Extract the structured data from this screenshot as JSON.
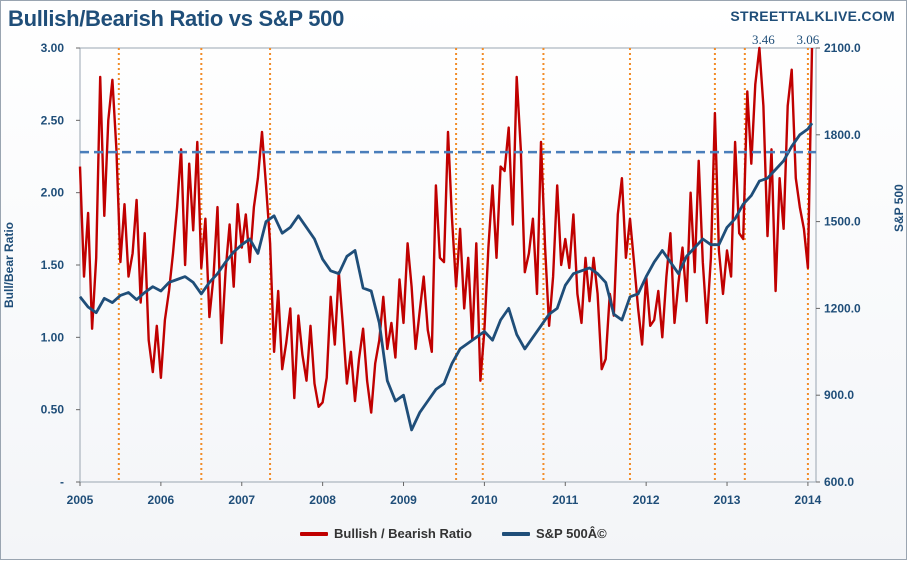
{
  "header": {
    "title": "Bullish/Bearish Ratio vs S&P 500",
    "watermark": "STREETTALKLIVE.COM"
  },
  "chart_data": {
    "type": "line",
    "title": "Bullish/Bearish Ratio vs S&P 500",
    "ylabel": "Bull/Bear Ratio",
    "y2label": "S&P 500",
    "ylim": [
      0,
      3
    ],
    "y2lim": [
      600,
      2100
    ],
    "xlim": [
      2005,
      2014.1
    ],
    "x_tick_labels": [
      "2005",
      "2006",
      "2007",
      "2008",
      "2009",
      "2010",
      "2011",
      "2012",
      "2013",
      "2014"
    ],
    "y_tick_labels": [
      "-",
      "0.50",
      "1.00",
      "1.50",
      "2.00",
      "2.50",
      "3.00"
    ],
    "y2_tick_labels": [
      "600.0",
      "900.0",
      "1200.0",
      "1500.0",
      "1800.0",
      "2100.0"
    ],
    "grid": false,
    "legend_position": "bottom",
    "threshold_line": {
      "value": 2.28,
      "style": "dashed"
    },
    "annotations": [
      {
        "text": "3.46",
        "x": 2013.45,
        "y": 3.46
      },
      {
        "text": "3.06",
        "x": 2014.0,
        "y": 3.06
      }
    ],
    "signal_dates": [
      2005.48,
      2006.5,
      2007.35,
      2009.65,
      2009.98,
      2010.73,
      2011.8,
      2012.85,
      2013.22,
      2014.0
    ],
    "series": [
      {
        "name": "Bullish / Bearish Ratio",
        "color": "#c00000",
        "axis": "left",
        "x": [
          2005.0,
          2005.05,
          2005.1,
          2005.15,
          2005.2,
          2005.25,
          2005.3,
          2005.35,
          2005.4,
          2005.45,
          2005.5,
          2005.55,
          2005.6,
          2005.65,
          2005.7,
          2005.75,
          2005.8,
          2005.85,
          2005.9,
          2005.95,
          2006.0,
          2006.05,
          2006.1,
          2006.15,
          2006.2,
          2006.25,
          2006.3,
          2006.35,
          2006.4,
          2006.45,
          2006.5,
          2006.55,
          2006.6,
          2006.65,
          2006.7,
          2006.75,
          2006.8,
          2006.85,
          2006.9,
          2006.95,
          2007.0,
          2007.05,
          2007.1,
          2007.15,
          2007.2,
          2007.25,
          2007.3,
          2007.35,
          2007.4,
          2007.45,
          2007.5,
          2007.55,
          2007.6,
          2007.65,
          2007.7,
          2007.75,
          2007.8,
          2007.85,
          2007.9,
          2007.95,
          2008.0,
          2008.05,
          2008.1,
          2008.15,
          2008.2,
          2008.25,
          2008.3,
          2008.35,
          2008.4,
          2008.45,
          2008.5,
          2008.55,
          2008.6,
          2008.65,
          2008.7,
          2008.75,
          2008.8,
          2008.85,
          2008.9,
          2008.95,
          2009.0,
          2009.05,
          2009.1,
          2009.15,
          2009.2,
          2009.25,
          2009.3,
          2009.35,
          2009.4,
          2009.45,
          2009.5,
          2009.55,
          2009.6,
          2009.65,
          2009.7,
          2009.75,
          2009.8,
          2009.85,
          2009.9,
          2009.95,
          2010.0,
          2010.05,
          2010.1,
          2010.15,
          2010.2,
          2010.25,
          2010.3,
          2010.35,
          2010.4,
          2010.45,
          2010.5,
          2010.55,
          2010.6,
          2010.65,
          2010.7,
          2010.75,
          2010.8,
          2010.85,
          2010.9,
          2010.95,
          2011.0,
          2011.05,
          2011.1,
          2011.15,
          2011.2,
          2011.25,
          2011.3,
          2011.35,
          2011.4,
          2011.45,
          2011.5,
          2011.55,
          2011.6,
          2011.65,
          2011.7,
          2011.75,
          2011.8,
          2011.85,
          2011.9,
          2011.95,
          2012.0,
          2012.05,
          2012.1,
          2012.15,
          2012.2,
          2012.25,
          2012.3,
          2012.35,
          2012.4,
          2012.45,
          2012.5,
          2012.55,
          2012.6,
          2012.65,
          2012.7,
          2012.75,
          2012.8,
          2012.85,
          2012.9,
          2012.95,
          2013.0,
          2013.05,
          2013.1,
          2013.15,
          2013.2,
          2013.25,
          2013.3,
          2013.35,
          2013.4,
          2013.45,
          2013.5,
          2013.55,
          2013.6,
          2013.65,
          2013.7,
          2013.75,
          2013.8,
          2013.85,
          2013.9,
          2013.95,
          2014.0,
          2014.05
        ],
        "values": [
          2.18,
          1.42,
          1.86,
          1.06,
          1.55,
          2.8,
          1.84,
          2.5,
          2.78,
          2.3,
          1.52,
          1.92,
          1.42,
          1.58,
          1.95,
          1.24,
          1.72,
          0.98,
          0.76,
          1.08,
          0.72,
          1.12,
          1.32,
          1.58,
          1.9,
          2.3,
          1.5,
          2.2,
          1.74,
          2.35,
          1.48,
          1.82,
          1.14,
          1.42,
          1.9,
          0.96,
          1.46,
          1.78,
          1.35,
          1.92,
          1.62,
          1.85,
          1.52,
          1.9,
          2.1,
          2.42,
          2.05,
          1.65,
          0.9,
          1.32,
          0.78,
          0.96,
          1.2,
          0.58,
          1.15,
          0.88,
          0.7,
          1.08,
          0.68,
          0.52,
          0.55,
          0.72,
          1.28,
          0.95,
          1.45,
          1.08,
          0.68,
          0.9,
          0.56,
          0.85,
          1.06,
          0.7,
          0.48,
          0.82,
          0.98,
          1.28,
          0.92,
          1.1,
          0.86,
          1.4,
          1.1,
          1.65,
          1.35,
          0.92,
          1.18,
          1.42,
          1.05,
          0.9,
          2.05,
          1.55,
          1.52,
          2.42,
          1.82,
          1.35,
          1.75,
          1.2,
          1.55,
          0.98,
          1.65,
          0.7,
          1.05,
          1.62,
          2.05,
          1.55,
          2.18,
          2.15,
          2.45,
          1.78,
          2.8,
          2.3,
          1.45,
          1.58,
          1.82,
          1.3,
          2.35,
          1.62,
          1.08,
          1.42,
          2.05,
          1.5,
          1.68,
          1.48,
          1.85,
          1.3,
          1.1,
          1.55,
          1.25,
          1.55,
          1.3,
          0.78,
          0.85,
          1.3,
          1.15,
          1.85,
          2.1,
          1.55,
          1.82,
          1.52,
          1.2,
          0.95,
          1.42,
          1.08,
          1.12,
          1.32,
          1.0,
          1.42,
          1.72,
          1.1,
          1.38,
          1.62,
          1.25,
          2.0,
          1.45,
          2.22,
          1.52,
          1.1,
          1.55,
          2.55,
          1.6,
          1.3,
          1.6,
          1.42,
          2.35,
          1.72,
          1.68,
          2.7,
          2.2,
          2.75,
          3.46,
          2.6,
          1.7,
          2.3,
          1.32,
          2.1,
          1.75,
          2.6,
          2.85,
          2.1,
          1.9,
          1.75,
          1.48,
          3.06
        ]
      },
      {
        "name": "S&P 500Â©",
        "color": "#1f4e79",
        "axis": "right",
        "x": [
          2005.0,
          2005.1,
          2005.2,
          2005.3,
          2005.4,
          2005.5,
          2005.6,
          2005.7,
          2005.8,
          2005.9,
          2006.0,
          2006.1,
          2006.2,
          2006.3,
          2006.4,
          2006.5,
          2006.6,
          2006.7,
          2006.8,
          2006.9,
          2007.0,
          2007.1,
          2007.2,
          2007.3,
          2007.4,
          2007.5,
          2007.6,
          2007.7,
          2007.8,
          2007.9,
          2008.0,
          2008.1,
          2008.2,
          2008.3,
          2008.4,
          2008.5,
          2008.6,
          2008.7,
          2008.8,
          2008.9,
          2009.0,
          2009.1,
          2009.2,
          2009.3,
          2009.4,
          2009.5,
          2009.6,
          2009.7,
          2009.8,
          2009.9,
          2010.0,
          2010.1,
          2010.2,
          2010.3,
          2010.4,
          2010.5,
          2010.6,
          2010.7,
          2010.8,
          2010.9,
          2011.0,
          2011.1,
          2011.2,
          2011.3,
          2011.4,
          2011.5,
          2011.6,
          2011.7,
          2011.8,
          2011.9,
          2012.0,
          2012.1,
          2012.2,
          2012.3,
          2012.4,
          2012.5,
          2012.6,
          2012.7,
          2012.8,
          2012.9,
          2013.0,
          2013.1,
          2013.2,
          2013.3,
          2013.4,
          2013.5,
          2013.6,
          2013.7,
          2013.8,
          2013.9,
          2014.0,
          2014.05
        ],
        "values": [
          1240,
          1205,
          1185,
          1235,
          1220,
          1245,
          1255,
          1230,
          1255,
          1275,
          1260,
          1290,
          1300,
          1310,
          1290,
          1250,
          1290,
          1320,
          1360,
          1395,
          1420,
          1440,
          1390,
          1500,
          1520,
          1460,
          1480,
          1520,
          1480,
          1440,
          1370,
          1330,
          1320,
          1380,
          1400,
          1270,
          1260,
          1150,
          950,
          880,
          900,
          780,
          840,
          880,
          920,
          940,
          1010,
          1060,
          1080,
          1100,
          1120,
          1090,
          1160,
          1200,
          1110,
          1060,
          1100,
          1140,
          1180,
          1200,
          1280,
          1320,
          1330,
          1340,
          1320,
          1290,
          1180,
          1160,
          1240,
          1250,
          1310,
          1360,
          1400,
          1360,
          1320,
          1380,
          1410,
          1440,
          1420,
          1420,
          1480,
          1510,
          1560,
          1590,
          1640,
          1650,
          1680,
          1710,
          1760,
          1800,
          1820,
          1840
        ]
      }
    ]
  },
  "legend": {
    "items": [
      {
        "label": "Bullish / Bearish Ratio",
        "color": "#c00000"
      },
      {
        "label": "S&P 500Â©",
        "color": "#1f4e79"
      }
    ]
  }
}
